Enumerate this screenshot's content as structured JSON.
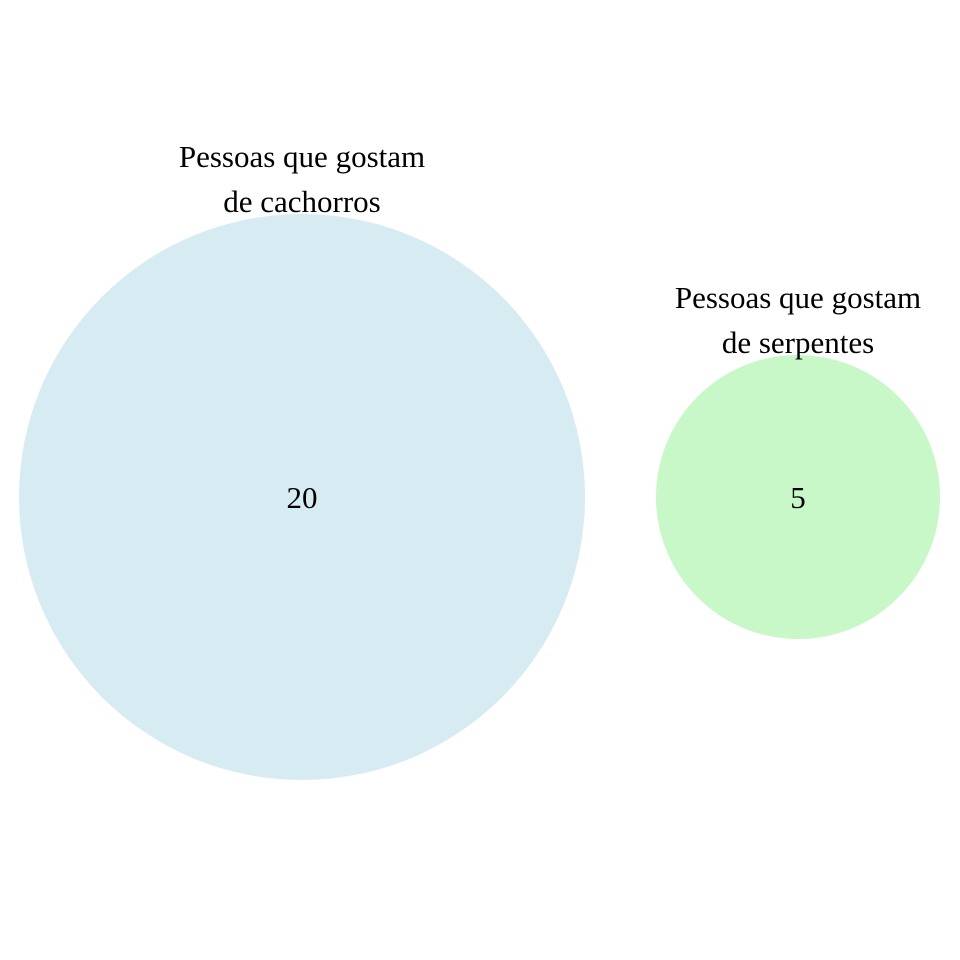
{
  "diagram": {
    "type": "venn",
    "sets": [
      {
        "id": "dogs",
        "label_lines": [
          "Pessoas que gostam",
          "de cachorros"
        ],
        "count": "20",
        "color": "#d7ebf2"
      },
      {
        "id": "snakes",
        "label_lines": [
          "Pessoas que gostam",
          "de serpentes"
        ],
        "count": "5",
        "color": "#c8f7c8"
      }
    ],
    "intersection": null
  }
}
